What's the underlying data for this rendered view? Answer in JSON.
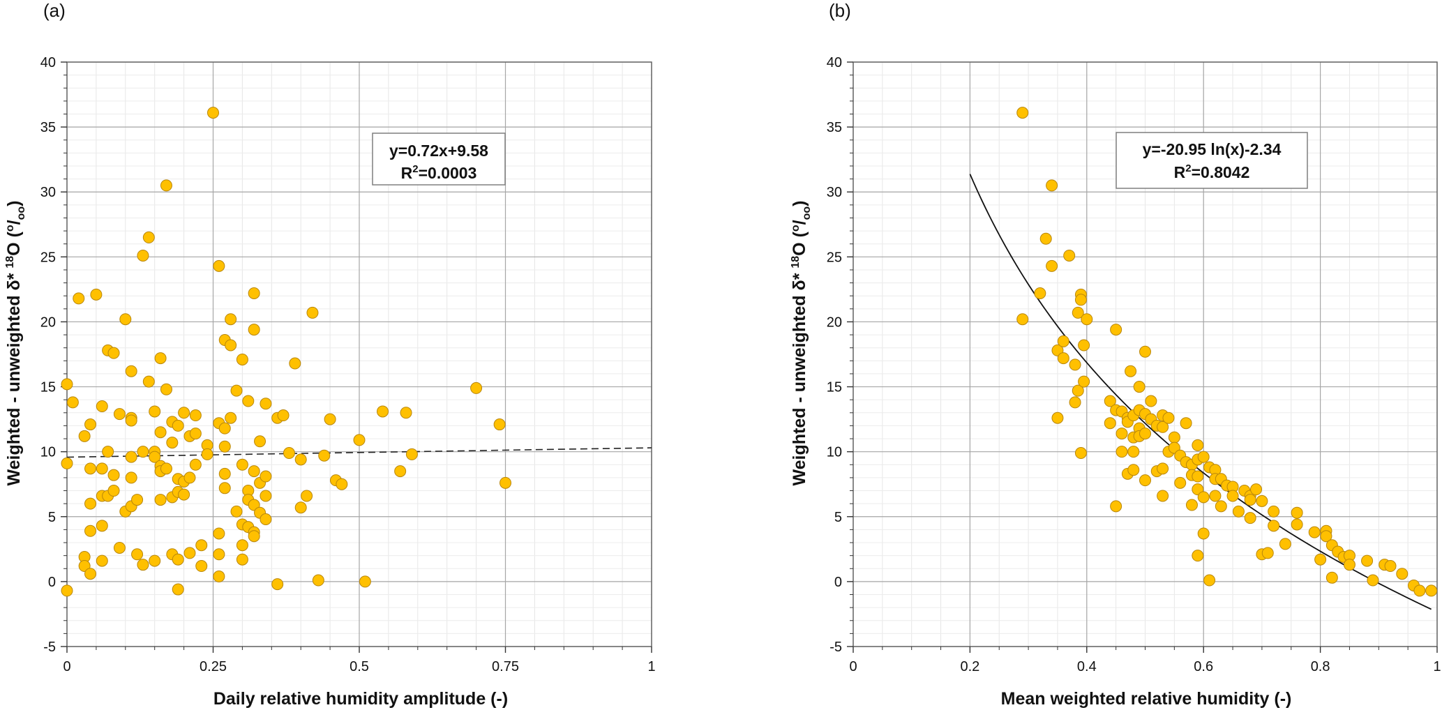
{
  "chart_data": [
    {
      "panel_label": "(a)",
      "type": "scatter",
      "xlabel": "Daily relative humidity amplitude (-)",
      "ylabel_main": "Weighted - unweighted δ* ",
      "ylabel_sup": "18",
      "ylabel_tail": "O (",
      "ylabel_unit_sup": "o",
      "ylabel_unit_sep": "/",
      "ylabel_unit_sub": "oo",
      "ylabel_close": ")",
      "xlim": [
        0,
        1
      ],
      "ylim": [
        -5,
        40
      ],
      "x_ticks": [
        0,
        0.25,
        0.5,
        0.75,
        1
      ],
      "x_tick_labels": [
        "0",
        "0.25",
        "0.5",
        "0.75",
        "1"
      ],
      "y_ticks": [
        -5,
        0,
        5,
        10,
        15,
        20,
        25,
        30,
        35,
        40
      ],
      "y_tick_labels": [
        "-5",
        "0",
        "5",
        "10",
        "15",
        "20",
        "25",
        "30",
        "35",
        "40"
      ],
      "equation_line1": "y=0.72x+9.58",
      "equation_line2_prefix": "R",
      "equation_line2_sup": "2",
      "equation_line2_suffix": "=0.0003",
      "fit": {
        "kind": "linear",
        "slope": 0.72,
        "intercept": 9.58,
        "x_range": [
          0,
          1
        ],
        "style": "dashed"
      },
      "marker_color": "#FFC000",
      "marker_edge": "#B8860B",
      "points": [
        [
          0.0,
          15.2
        ],
        [
          0.0,
          9.1
        ],
        [
          0.0,
          -0.7
        ],
        [
          0.01,
          13.8
        ],
        [
          0.02,
          21.8
        ],
        [
          0.03,
          11.2
        ],
        [
          0.03,
          1.9
        ],
        [
          0.03,
          1.2
        ],
        [
          0.04,
          12.1
        ],
        [
          0.04,
          8.7
        ],
        [
          0.04,
          6.0
        ],
        [
          0.04,
          3.9
        ],
        [
          0.04,
          0.6
        ],
        [
          0.05,
          22.1
        ],
        [
          0.06,
          13.5
        ],
        [
          0.06,
          8.7
        ],
        [
          0.06,
          6.6
        ],
        [
          0.06,
          4.3
        ],
        [
          0.06,
          1.6
        ],
        [
          0.07,
          17.8
        ],
        [
          0.07,
          10.0
        ],
        [
          0.07,
          6.6
        ],
        [
          0.08,
          17.6
        ],
        [
          0.08,
          8.2
        ],
        [
          0.08,
          7.0
        ],
        [
          0.09,
          12.9
        ],
        [
          0.09,
          2.6
        ],
        [
          0.1,
          20.2
        ],
        [
          0.1,
          5.4
        ],
        [
          0.11,
          16.2
        ],
        [
          0.11,
          12.6
        ],
        [
          0.11,
          12.4
        ],
        [
          0.11,
          9.6
        ],
        [
          0.11,
          8.0
        ],
        [
          0.11,
          5.8
        ],
        [
          0.12,
          6.3
        ],
        [
          0.12,
          2.1
        ],
        [
          0.13,
          25.1
        ],
        [
          0.13,
          10.0
        ],
        [
          0.13,
          1.3
        ],
        [
          0.14,
          26.5
        ],
        [
          0.14,
          15.4
        ],
        [
          0.15,
          13.1
        ],
        [
          0.15,
          10.0
        ],
        [
          0.15,
          9.6
        ],
        [
          0.15,
          1.6
        ],
        [
          0.16,
          17.2
        ],
        [
          0.16,
          11.5
        ],
        [
          0.16,
          8.9
        ],
        [
          0.16,
          8.5
        ],
        [
          0.16,
          6.3
        ],
        [
          0.17,
          30.5
        ],
        [
          0.17,
          14.8
        ],
        [
          0.17,
          8.7
        ],
        [
          0.18,
          12.3
        ],
        [
          0.18,
          10.7
        ],
        [
          0.18,
          6.5
        ],
        [
          0.18,
          2.1
        ],
        [
          0.19,
          12.0
        ],
        [
          0.19,
          7.9
        ],
        [
          0.19,
          6.9
        ],
        [
          0.19,
          1.7
        ],
        [
          0.19,
          -0.6
        ],
        [
          0.2,
          13.0
        ],
        [
          0.2,
          7.7
        ],
        [
          0.2,
          6.7
        ],
        [
          0.21,
          11.2
        ],
        [
          0.21,
          8.0
        ],
        [
          0.21,
          2.2
        ],
        [
          0.22,
          12.8
        ],
        [
          0.22,
          11.4
        ],
        [
          0.22,
          9.0
        ],
        [
          0.23,
          2.8
        ],
        [
          0.23,
          1.2
        ],
        [
          0.24,
          10.5
        ],
        [
          0.24,
          9.8
        ],
        [
          0.25,
          36.1
        ],
        [
          0.26,
          24.3
        ],
        [
          0.26,
          12.2
        ],
        [
          0.26,
          3.7
        ],
        [
          0.26,
          2.1
        ],
        [
          0.26,
          0.4
        ],
        [
          0.27,
          18.6
        ],
        [
          0.27,
          11.8
        ],
        [
          0.27,
          10.4
        ],
        [
          0.27,
          8.3
        ],
        [
          0.27,
          7.2
        ],
        [
          0.28,
          20.2
        ],
        [
          0.28,
          18.2
        ],
        [
          0.28,
          12.6
        ],
        [
          0.29,
          14.7
        ],
        [
          0.29,
          5.4
        ],
        [
          0.3,
          17.1
        ],
        [
          0.3,
          9.0
        ],
        [
          0.3,
          4.4
        ],
        [
          0.3,
          2.8
        ],
        [
          0.3,
          1.7
        ],
        [
          0.31,
          13.9
        ],
        [
          0.31,
          7.0
        ],
        [
          0.31,
          6.3
        ],
        [
          0.31,
          4.2
        ],
        [
          0.32,
          22.2
        ],
        [
          0.32,
          19.4
        ],
        [
          0.32,
          8.5
        ],
        [
          0.32,
          5.9
        ],
        [
          0.32,
          3.8
        ],
        [
          0.32,
          3.5
        ],
        [
          0.33,
          10.8
        ],
        [
          0.33,
          7.6
        ],
        [
          0.33,
          5.3
        ],
        [
          0.34,
          13.7
        ],
        [
          0.34,
          8.1
        ],
        [
          0.34,
          6.6
        ],
        [
          0.34,
          4.8
        ],
        [
          0.36,
          12.6
        ],
        [
          0.36,
          -0.2
        ],
        [
          0.37,
          12.8
        ],
        [
          0.38,
          9.9
        ],
        [
          0.39,
          16.8
        ],
        [
          0.4,
          9.4
        ],
        [
          0.4,
          5.7
        ],
        [
          0.41,
          6.6
        ],
        [
          0.42,
          20.7
        ],
        [
          0.43,
          0.1
        ],
        [
          0.44,
          9.7
        ],
        [
          0.45,
          12.5
        ],
        [
          0.46,
          7.8
        ],
        [
          0.47,
          7.5
        ],
        [
          0.5,
          10.9
        ],
        [
          0.51,
          0.0
        ],
        [
          0.54,
          13.1
        ],
        [
          0.57,
          8.5
        ],
        [
          0.58,
          13.0
        ],
        [
          0.59,
          9.8
        ],
        [
          0.7,
          14.9
        ],
        [
          0.74,
          12.1
        ],
        [
          0.75,
          7.6
        ]
      ]
    },
    {
      "panel_label": "(b)",
      "type": "scatter",
      "xlabel": "Mean weighted relative humidity (-)",
      "ylabel_main": "Weighted - unweighted δ* ",
      "ylabel_sup": "18",
      "ylabel_tail": "O (",
      "ylabel_unit_sup": "o",
      "ylabel_unit_sep": "/",
      "ylabel_unit_sub": "oo",
      "ylabel_close": ")",
      "xlim": [
        0,
        1
      ],
      "ylim": [
        -5,
        40
      ],
      "x_ticks": [
        0,
        0.2,
        0.4,
        0.6,
        0.8,
        1
      ],
      "x_tick_labels": [
        "0",
        "0.2",
        "0.4",
        "0.6",
        "0.8",
        "1"
      ],
      "y_ticks": [
        -5,
        0,
        5,
        10,
        15,
        20,
        25,
        30,
        35,
        40
      ],
      "y_tick_labels": [
        "-5",
        "0",
        "5",
        "10",
        "15",
        "20",
        "25",
        "30",
        "35",
        "40"
      ],
      "equation_line1": "y=-20.95 ln(x)-2.34",
      "equation_line2_prefix": "R",
      "equation_line2_sup": "2",
      "equation_line2_suffix": "=0.8042",
      "fit": {
        "kind": "log",
        "a": -20.95,
        "b": -2.34,
        "x_range": [
          0.2,
          0.99
        ],
        "style": "solid"
      },
      "marker_color": "#FFC000",
      "marker_edge": "#B8860B",
      "points": [
        [
          0.29,
          36.1
        ],
        [
          0.29,
          20.2
        ],
        [
          0.32,
          22.2
        ],
        [
          0.33,
          26.4
        ],
        [
          0.34,
          30.5
        ],
        [
          0.34,
          24.3
        ],
        [
          0.35,
          12.6
        ],
        [
          0.35,
          17.8
        ],
        [
          0.36,
          18.5
        ],
        [
          0.36,
          17.2
        ],
        [
          0.37,
          25.1
        ],
        [
          0.38,
          16.7
        ],
        [
          0.38,
          13.8
        ],
        [
          0.385,
          20.7
        ],
        [
          0.385,
          14.7
        ],
        [
          0.39,
          22.1
        ],
        [
          0.39,
          21.7
        ],
        [
          0.39,
          9.9
        ],
        [
          0.395,
          18.2
        ],
        [
          0.395,
          15.4
        ],
        [
          0.4,
          20.2
        ],
        [
          0.44,
          13.9
        ],
        [
          0.44,
          12.2
        ],
        [
          0.45,
          19.4
        ],
        [
          0.45,
          13.2
        ],
        [
          0.45,
          5.8
        ],
        [
          0.46,
          13.1
        ],
        [
          0.46,
          11.4
        ],
        [
          0.46,
          10.0
        ],
        [
          0.47,
          12.6
        ],
        [
          0.47,
          12.3
        ],
        [
          0.47,
          8.3
        ],
        [
          0.475,
          16.2
        ],
        [
          0.48,
          12.8
        ],
        [
          0.48,
          11.1
        ],
        [
          0.48,
          10.0
        ],
        [
          0.48,
          8.6
        ],
        [
          0.49,
          15.0
        ],
        [
          0.49,
          13.2
        ],
        [
          0.49,
          11.8
        ],
        [
          0.49,
          11.2
        ],
        [
          0.5,
          17.7
        ],
        [
          0.5,
          12.9
        ],
        [
          0.5,
          11.4
        ],
        [
          0.5,
          7.8
        ],
        [
          0.51,
          13.9
        ],
        [
          0.51,
          12.5
        ],
        [
          0.52,
          12.0
        ],
        [
          0.52,
          8.5
        ],
        [
          0.53,
          12.8
        ],
        [
          0.53,
          11.9
        ],
        [
          0.53,
          8.7
        ],
        [
          0.53,
          6.6
        ],
        [
          0.54,
          12.6
        ],
        [
          0.54,
          10.0
        ],
        [
          0.55,
          11.1
        ],
        [
          0.55,
          10.3
        ],
        [
          0.56,
          9.7
        ],
        [
          0.56,
          7.6
        ],
        [
          0.57,
          12.2
        ],
        [
          0.57,
          9.2
        ],
        [
          0.58,
          9.0
        ],
        [
          0.58,
          8.2
        ],
        [
          0.58,
          5.9
        ],
        [
          0.59,
          10.5
        ],
        [
          0.59,
          9.4
        ],
        [
          0.59,
          8.1
        ],
        [
          0.59,
          7.1
        ],
        [
          0.59,
          2.0
        ],
        [
          0.6,
          9.6
        ],
        [
          0.6,
          6.5
        ],
        [
          0.6,
          3.7
        ],
        [
          0.61,
          8.8
        ],
        [
          0.61,
          0.1
        ],
        [
          0.62,
          8.6
        ],
        [
          0.62,
          7.9
        ],
        [
          0.62,
          6.6
        ],
        [
          0.63,
          7.9
        ],
        [
          0.63,
          5.8
        ],
        [
          0.64,
          7.4
        ],
        [
          0.65,
          7.3
        ],
        [
          0.65,
          6.6
        ],
        [
          0.66,
          5.4
        ],
        [
          0.67,
          7.0
        ],
        [
          0.68,
          6.6
        ],
        [
          0.68,
          6.3
        ],
        [
          0.68,
          4.9
        ],
        [
          0.69,
          7.1
        ],
        [
          0.7,
          6.2
        ],
        [
          0.7,
          2.1
        ],
        [
          0.71,
          2.2
        ],
        [
          0.72,
          5.4
        ],
        [
          0.72,
          4.3
        ],
        [
          0.74,
          2.9
        ],
        [
          0.76,
          5.3
        ],
        [
          0.76,
          4.4
        ],
        [
          0.79,
          3.8
        ],
        [
          0.8,
          1.7
        ],
        [
          0.81,
          3.9
        ],
        [
          0.81,
          3.5
        ],
        [
          0.82,
          2.8
        ],
        [
          0.82,
          0.3
        ],
        [
          0.83,
          2.3
        ],
        [
          0.84,
          1.9
        ],
        [
          0.85,
          2.0
        ],
        [
          0.85,
          1.3
        ],
        [
          0.88,
          1.6
        ],
        [
          0.89,
          0.1
        ],
        [
          0.91,
          1.3
        ],
        [
          0.92,
          1.2
        ],
        [
          0.94,
          0.6
        ],
        [
          0.96,
          -0.3
        ],
        [
          0.97,
          -0.7
        ],
        [
          0.99,
          -0.7
        ]
      ]
    }
  ]
}
